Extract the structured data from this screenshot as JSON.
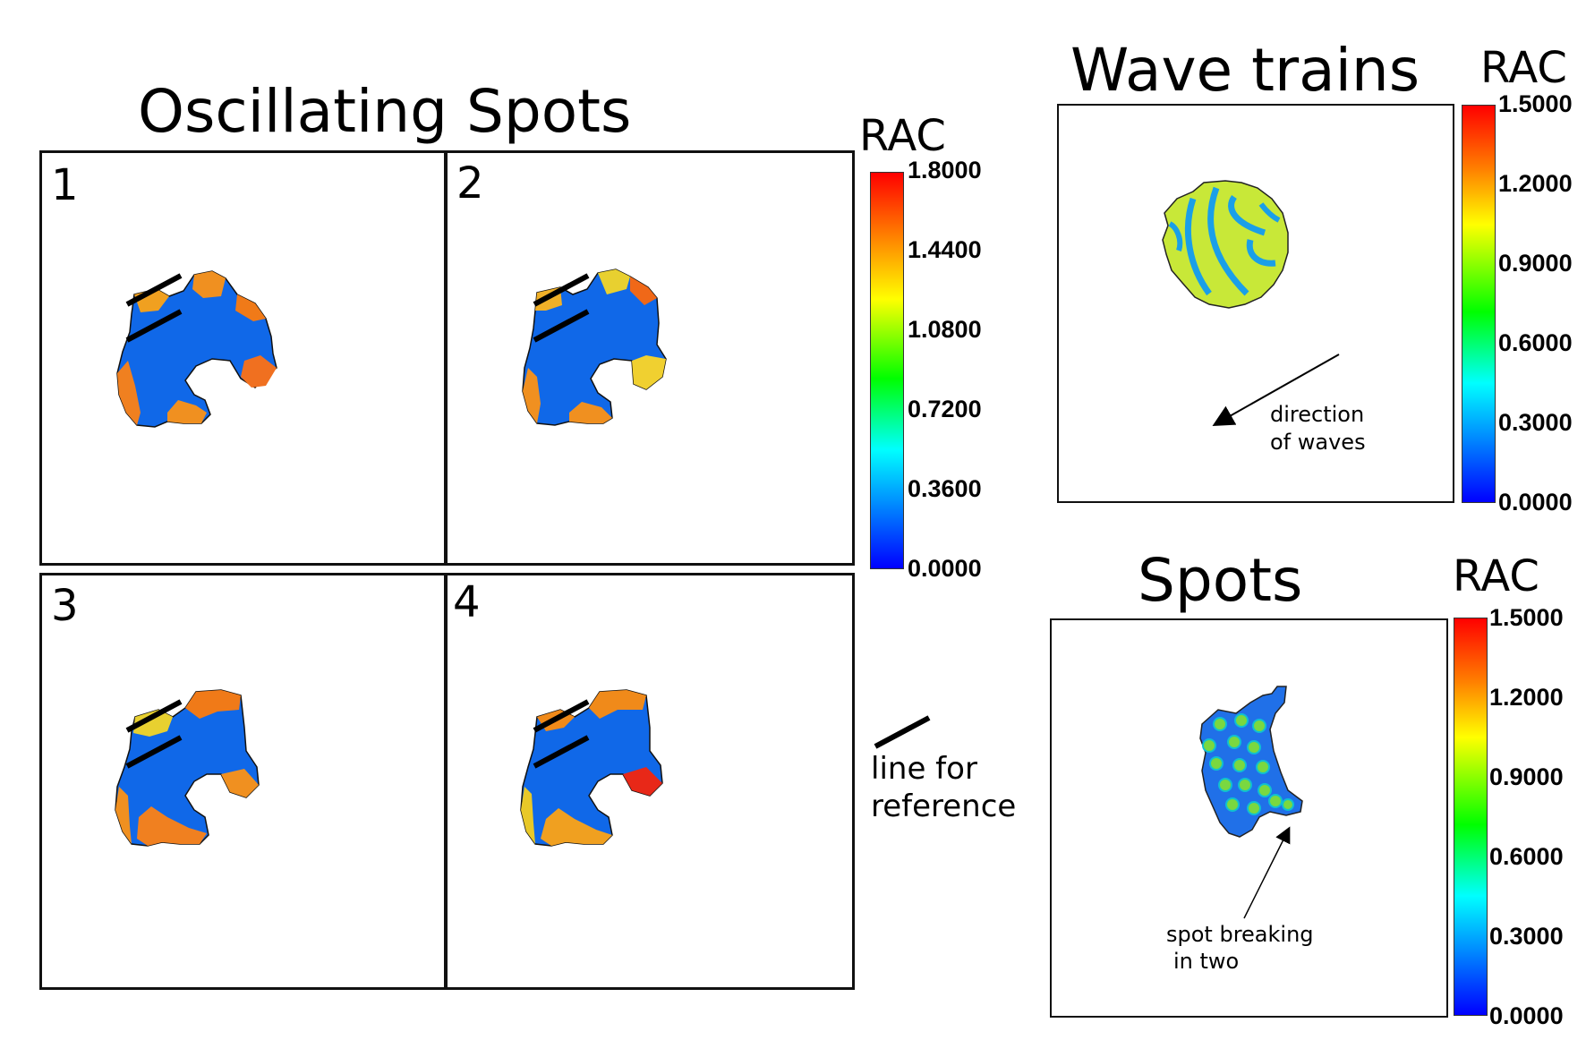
{
  "oscillating": {
    "title": "Oscillating Spots",
    "panel_labels": [
      "1",
      "2",
      "3",
      "4"
    ],
    "colorbar": {
      "label": "RAC",
      "ticks": [
        "1.8000",
        "1.4400",
        "1.0800",
        "0.7200",
        "0.3600",
        "0.0000"
      ],
      "range": [
        0,
        1.8
      ]
    },
    "reference": {
      "line1": "line for",
      "line2": "reference"
    }
  },
  "wave_trains": {
    "title": "Wave trains",
    "colorbar": {
      "label": "RAC",
      "ticks": [
        "1.5000",
        "1.2000",
        "0.9000",
        "0.6000",
        "0.3000",
        "0.0000"
      ],
      "range": [
        0,
        1.5
      ]
    },
    "annotation": {
      "line1": "direction",
      "line2": "of waves"
    }
  },
  "spots": {
    "title": "Spots",
    "colorbar": {
      "label": "RAC",
      "ticks": [
        "1.5000",
        "1.2000",
        "0.9000",
        "0.6000",
        "0.3000",
        "0.0000"
      ],
      "range": [
        0,
        1.5
      ]
    },
    "annotation": {
      "line1": "spot breaking",
      "line2": "in two"
    }
  },
  "colors": {
    "colormap": [
      "#ff0000",
      "#ff8000",
      "#ffff00",
      "#00ff00",
      "#00ffff",
      "#0080ff",
      "#0000ff"
    ],
    "cell_low": "#1068e8",
    "cell_high": "#f08a1a"
  }
}
